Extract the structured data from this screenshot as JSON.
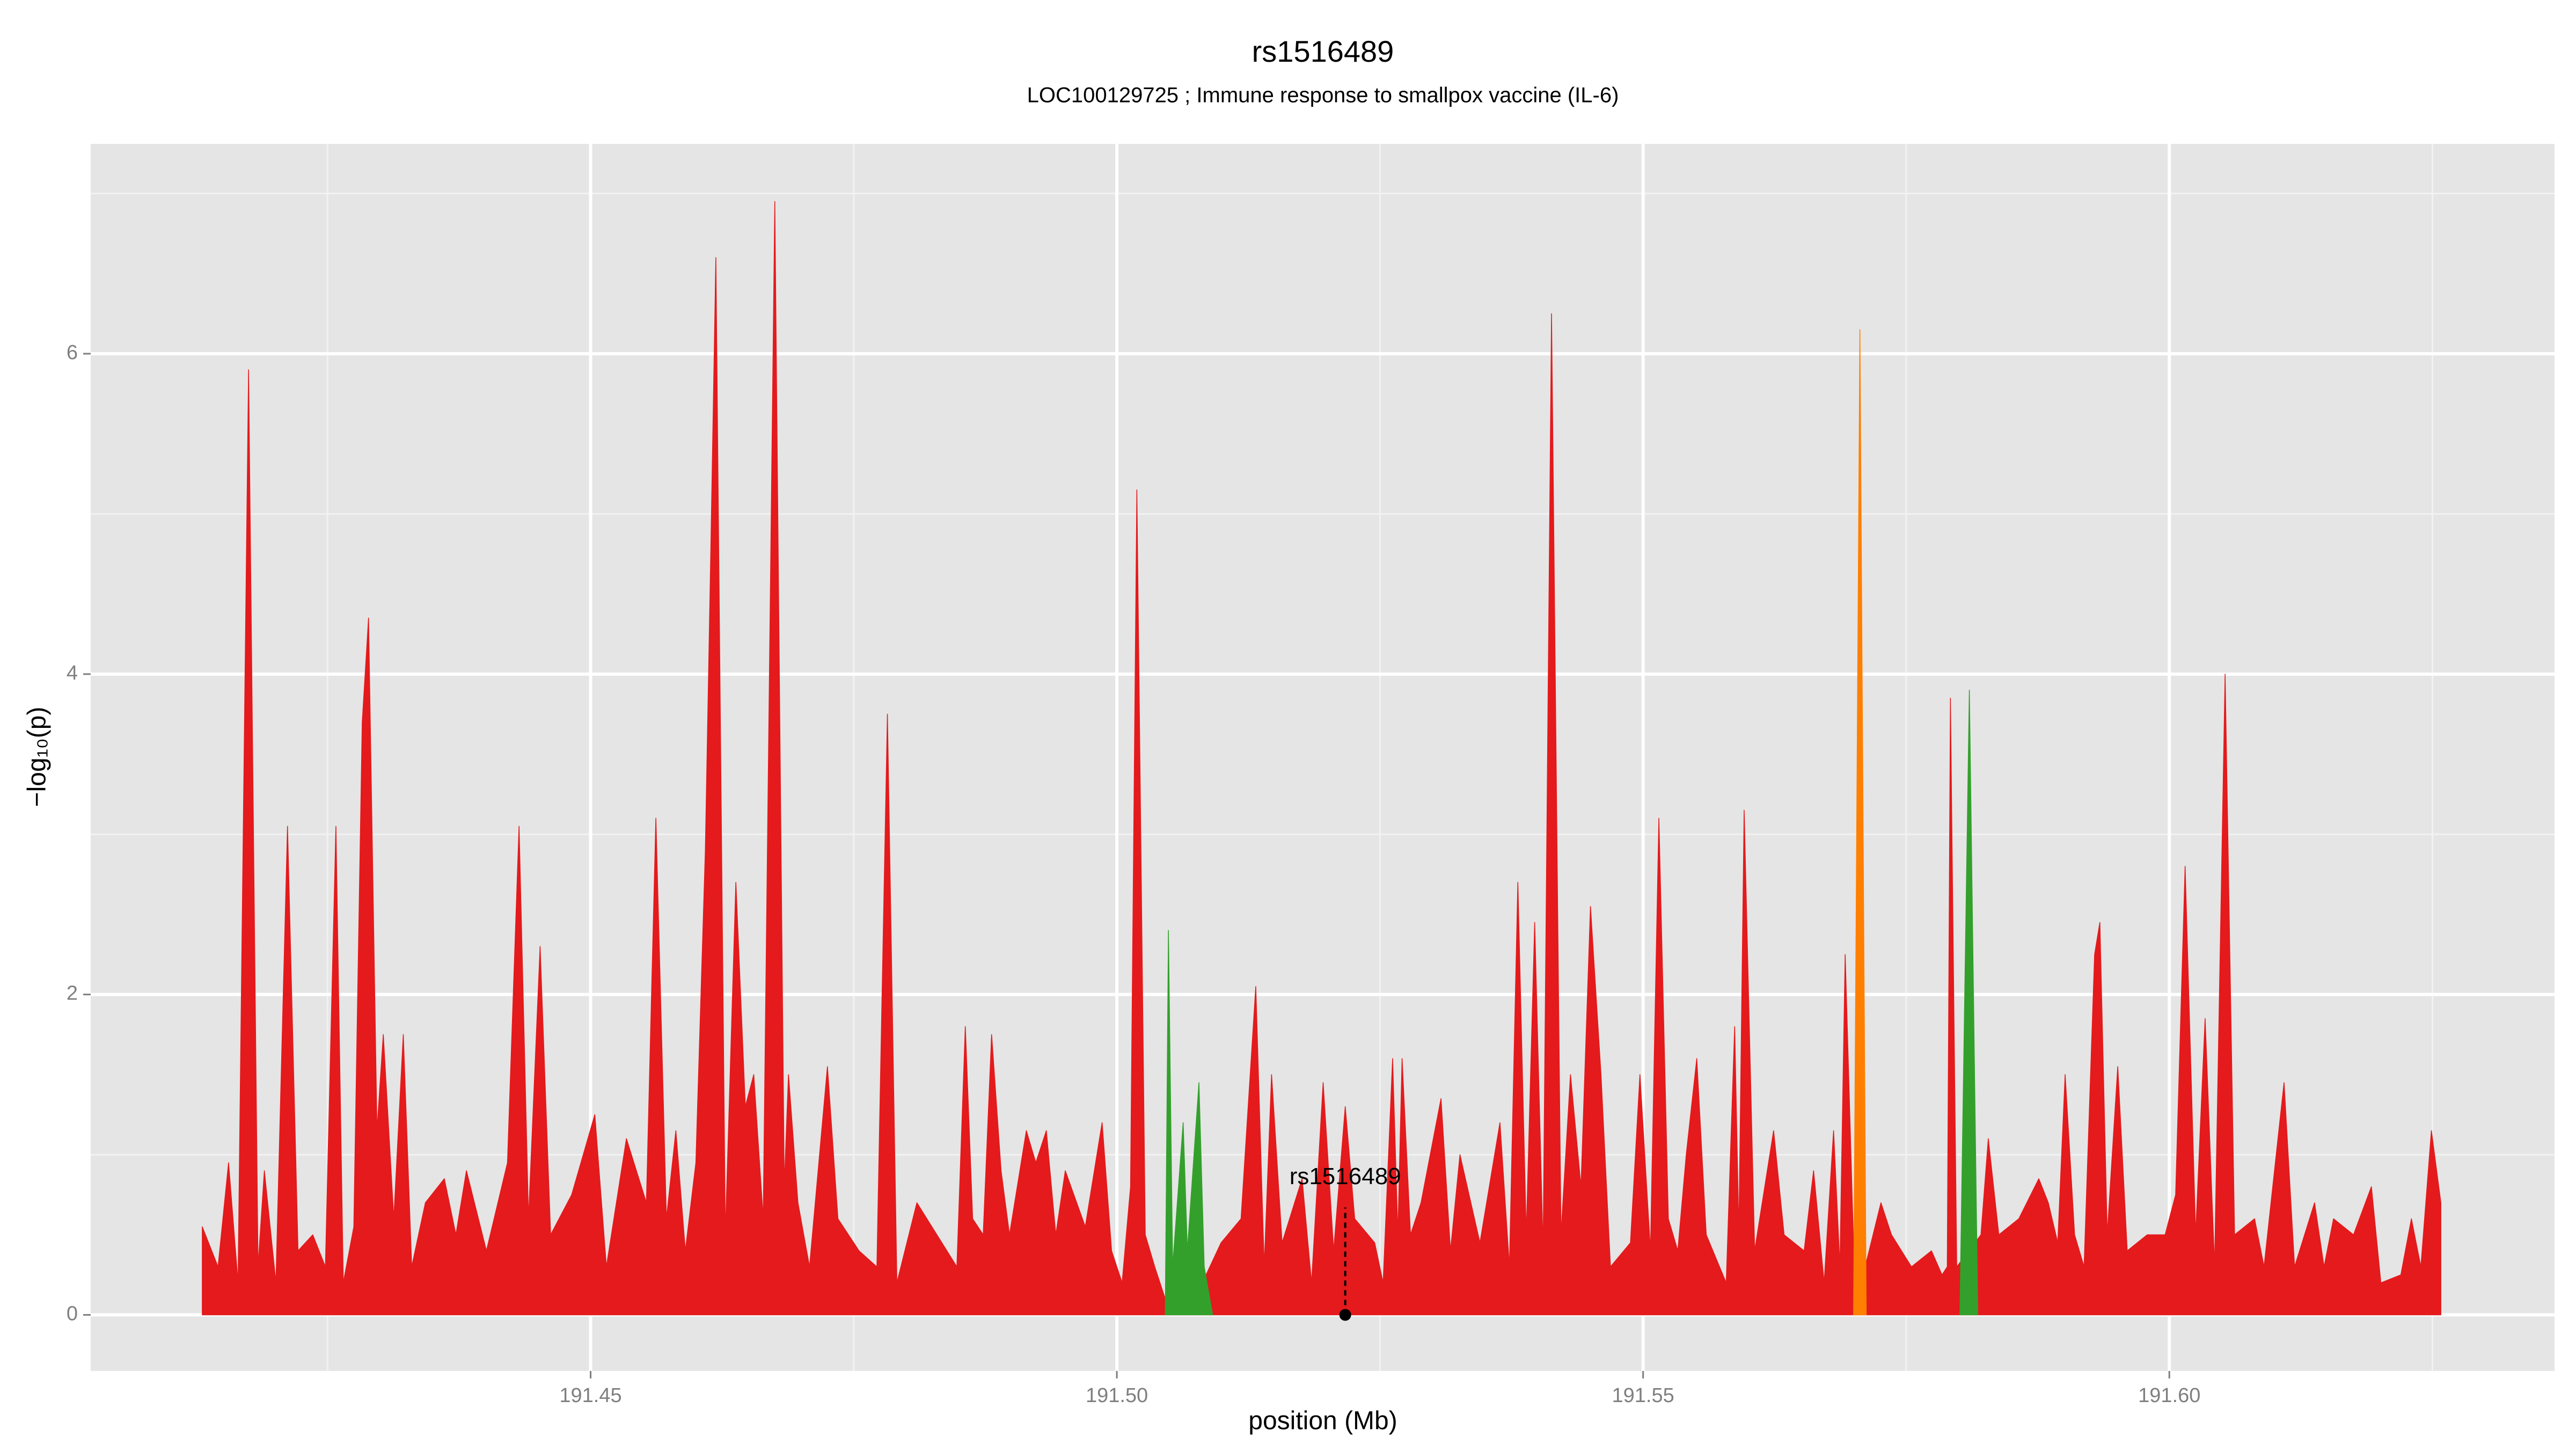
{
  "chart_data": {
    "type": "area",
    "title": "rs1516489",
    "subtitle": "LOC100129725 ; Immune response to smallpox vaccine (IL-6)",
    "xlabel": "position (Mb)",
    "ylabel": "−log₁₀(p)",
    "xlim": [
      191.4025,
      191.6366
    ],
    "ylim": [
      -0.35,
      7.31
    ],
    "xticks": [
      191.45,
      {
        "value": 191.5,
        "label": "191.50"
      },
      191.55,
      {
        "value": 191.6,
        "label": "191.60"
      }
    ],
    "yticks": [
      0,
      2,
      4,
      6
    ],
    "xminorticks": [
      191.425,
      191.475,
      191.525,
      191.575,
      191.625
    ],
    "yminorticks": [
      1,
      3,
      5,
      7
    ],
    "grid": true,
    "series": [
      {
        "color": "#e41a1c",
        "x": [
          191.4131,
          191.4146,
          191.4156,
          191.4165,
          191.4175,
          191.4184,
          191.419,
          191.4201,
          191.4212,
          191.4222,
          191.4236,
          191.4248,
          191.4258,
          191.4265,
          191.4275,
          191.4283,
          191.4289,
          191.4297,
          191.4303,
          191.4313,
          191.4322,
          191.433,
          191.4343,
          191.4361,
          191.4372,
          191.4382,
          191.4401,
          191.4421,
          191.4432,
          191.4441,
          191.4452,
          191.4462,
          191.4482,
          191.4504,
          191.4515,
          191.4534,
          191.4553,
          191.4562,
          191.4572,
          191.4581,
          191.459,
          191.46,
          191.4609,
          191.4614,
          191.4619,
          191.4628,
          191.4638,
          191.4647,
          191.4655,
          191.4664,
          191.4675,
          191.4684,
          191.4688,
          191.4697,
          191.4708,
          191.4725,
          191.4735,
          191.4755,
          191.4772,
          191.4782,
          191.4791,
          191.481,
          191.4829,
          191.4848,
          191.4856,
          191.4863,
          191.4873,
          191.4881,
          191.489,
          191.4898,
          191.4914,
          191.4923,
          191.4933,
          191.4942,
          191.4951,
          191.497,
          191.4986,
          191.4995,
          191.5005,
          191.5013,
          191.5019,
          191.5027,
          191.5036,
          191.5046,
          191.5067,
          191.5099,
          191.5118,
          191.5132,
          191.514,
          191.5147,
          191.5157,
          191.5176,
          191.5185,
          191.5196,
          191.5206,
          191.5217,
          191.5226,
          191.5245,
          191.5253,
          191.5262,
          191.5267,
          191.5271,
          191.5279,
          191.5289,
          191.5308,
          191.5317,
          191.5326,
          191.5345,
          191.5364,
          191.5373,
          191.5381,
          191.5389,
          191.5397,
          191.5405,
          191.5413,
          191.5422,
          191.5431,
          191.5441,
          191.545,
          191.546,
          191.5469,
          191.5488,
          191.5497,
          191.5507,
          191.5515,
          191.5524,
          191.5533,
          191.5541,
          191.5551,
          191.556,
          191.5579,
          191.5587,
          191.5591,
          191.5596,
          191.5606,
          191.5624,
          191.5634,
          191.5653,
          191.5662,
          191.5672,
          191.5681,
          191.5687,
          191.5692,
          191.5701,
          191.5711,
          191.5726,
          191.5736,
          191.5755,
          191.5774,
          191.5784,
          191.5789,
          191.5792,
          191.5798,
          191.5821,
          191.5828,
          191.5838,
          191.5857,
          191.5876,
          191.5885,
          191.5894,
          191.5901,
          191.591,
          191.5919,
          191.5929,
          191.5934,
          191.5941,
          191.5951,
          191.596,
          191.5979,
          191.5996,
          191.6006,
          191.6015,
          191.6025,
          191.6034,
          191.6043,
          191.6053,
          191.6062,
          191.6081,
          191.609,
          191.6109,
          191.6119,
          191.6138,
          191.6147,
          191.6156,
          191.6175,
          191.6192,
          191.6201,
          191.622,
          191.623,
          191.6239,
          191.6249,
          191.6258
        ],
        "values": [
          0.55,
          0.3,
          0.95,
          0.2,
          5.9,
          0.3,
          0.9,
          0.2,
          3.05,
          0.4,
          0.5,
          0.3,
          3.05,
          0.2,
          0.55,
          3.7,
          4.35,
          1.15,
          1.75,
          0.6,
          1.75,
          0.3,
          0.7,
          0.85,
          0.5,
          0.9,
          0.4,
          0.95,
          3.05,
          0.6,
          2.3,
          0.5,
          0.75,
          1.25,
          0.3,
          1.1,
          0.7,
          3.1,
          0.6,
          1.15,
          0.4,
          0.95,
          2.9,
          4.7,
          6.6,
          0.5,
          2.7,
          1.3,
          1.5,
          0.6,
          6.95,
          0.8,
          1.5,
          0.7,
          0.3,
          1.55,
          0.6,
          0.4,
          0.3,
          3.75,
          0.2,
          0.7,
          0.5,
          0.3,
          1.8,
          0.6,
          0.5,
          1.75,
          0.9,
          0.5,
          1.15,
          0.95,
          1.15,
          0.5,
          0.9,
          0.55,
          1.2,
          0.4,
          0.2,
          0.8,
          5.15,
          0.5,
          0.3,
          0.1,
          0,
          0.45,
          0.6,
          2.05,
          0.3,
          1.5,
          0.45,
          0.85,
          0.2,
          1.45,
          0.4,
          1.3,
          0.6,
          0.45,
          0.2,
          1.6,
          0.5,
          1.6,
          0.5,
          0.7,
          1.35,
          0.4,
          1,
          0.45,
          1.2,
          0.3,
          2.7,
          0.5,
          2.45,
          0.4,
          6.25,
          0.5,
          1.5,
          0.8,
          2.55,
          1.5,
          0.3,
          0.45,
          1.5,
          0.4,
          3.1,
          0.6,
          0.4,
          1,
          1.6,
          0.5,
          0.2,
          1.8,
          0.5,
          3.15,
          0.4,
          1.15,
          0.5,
          0.4,
          0.9,
          0.2,
          1.15,
          0.3,
          2.25,
          0.2,
          0.3,
          0.7,
          0.5,
          0.3,
          0.4,
          0.25,
          0.3,
          3.85,
          0.3,
          0.5,
          1.1,
          0.5,
          0.6,
          0.85,
          0.7,
          0.45,
          1.5,
          0.5,
          0.3,
          2.25,
          2.45,
          0.5,
          1.55,
          0.4,
          0.5,
          0.5,
          0.75,
          2.8,
          0.5,
          1.85,
          0.3,
          4,
          0.5,
          0.6,
          0.3,
          1.45,
          0.3,
          0.7,
          0.3,
          0.6,
          0.5,
          0.8,
          0.2,
          0.25,
          0.6,
          0.3,
          1.15,
          0.7
        ]
      },
      {
        "color": "#33a02c",
        "x": [
          191.5046,
          191.5049,
          191.5053,
          191.5063,
          191.5067,
          191.5078,
          191.5083,
          191.5091,
          null,
          191.5801,
          191.581,
          191.5818
        ],
        "values": [
          0,
          2.4,
          0.3,
          1.2,
          0.4,
          1.45,
          0.3,
          0,
          null,
          0,
          3.9,
          0
        ]
      },
      {
        "color": "#ff7f00",
        "x": [
          191.57,
          191.5706,
          191.5712
        ],
        "values": [
          0,
          6.15,
          0
        ]
      }
    ],
    "annotations": [
      {
        "text": "rs1516489",
        "x": 191.5217,
        "y": 0
      }
    ]
  }
}
